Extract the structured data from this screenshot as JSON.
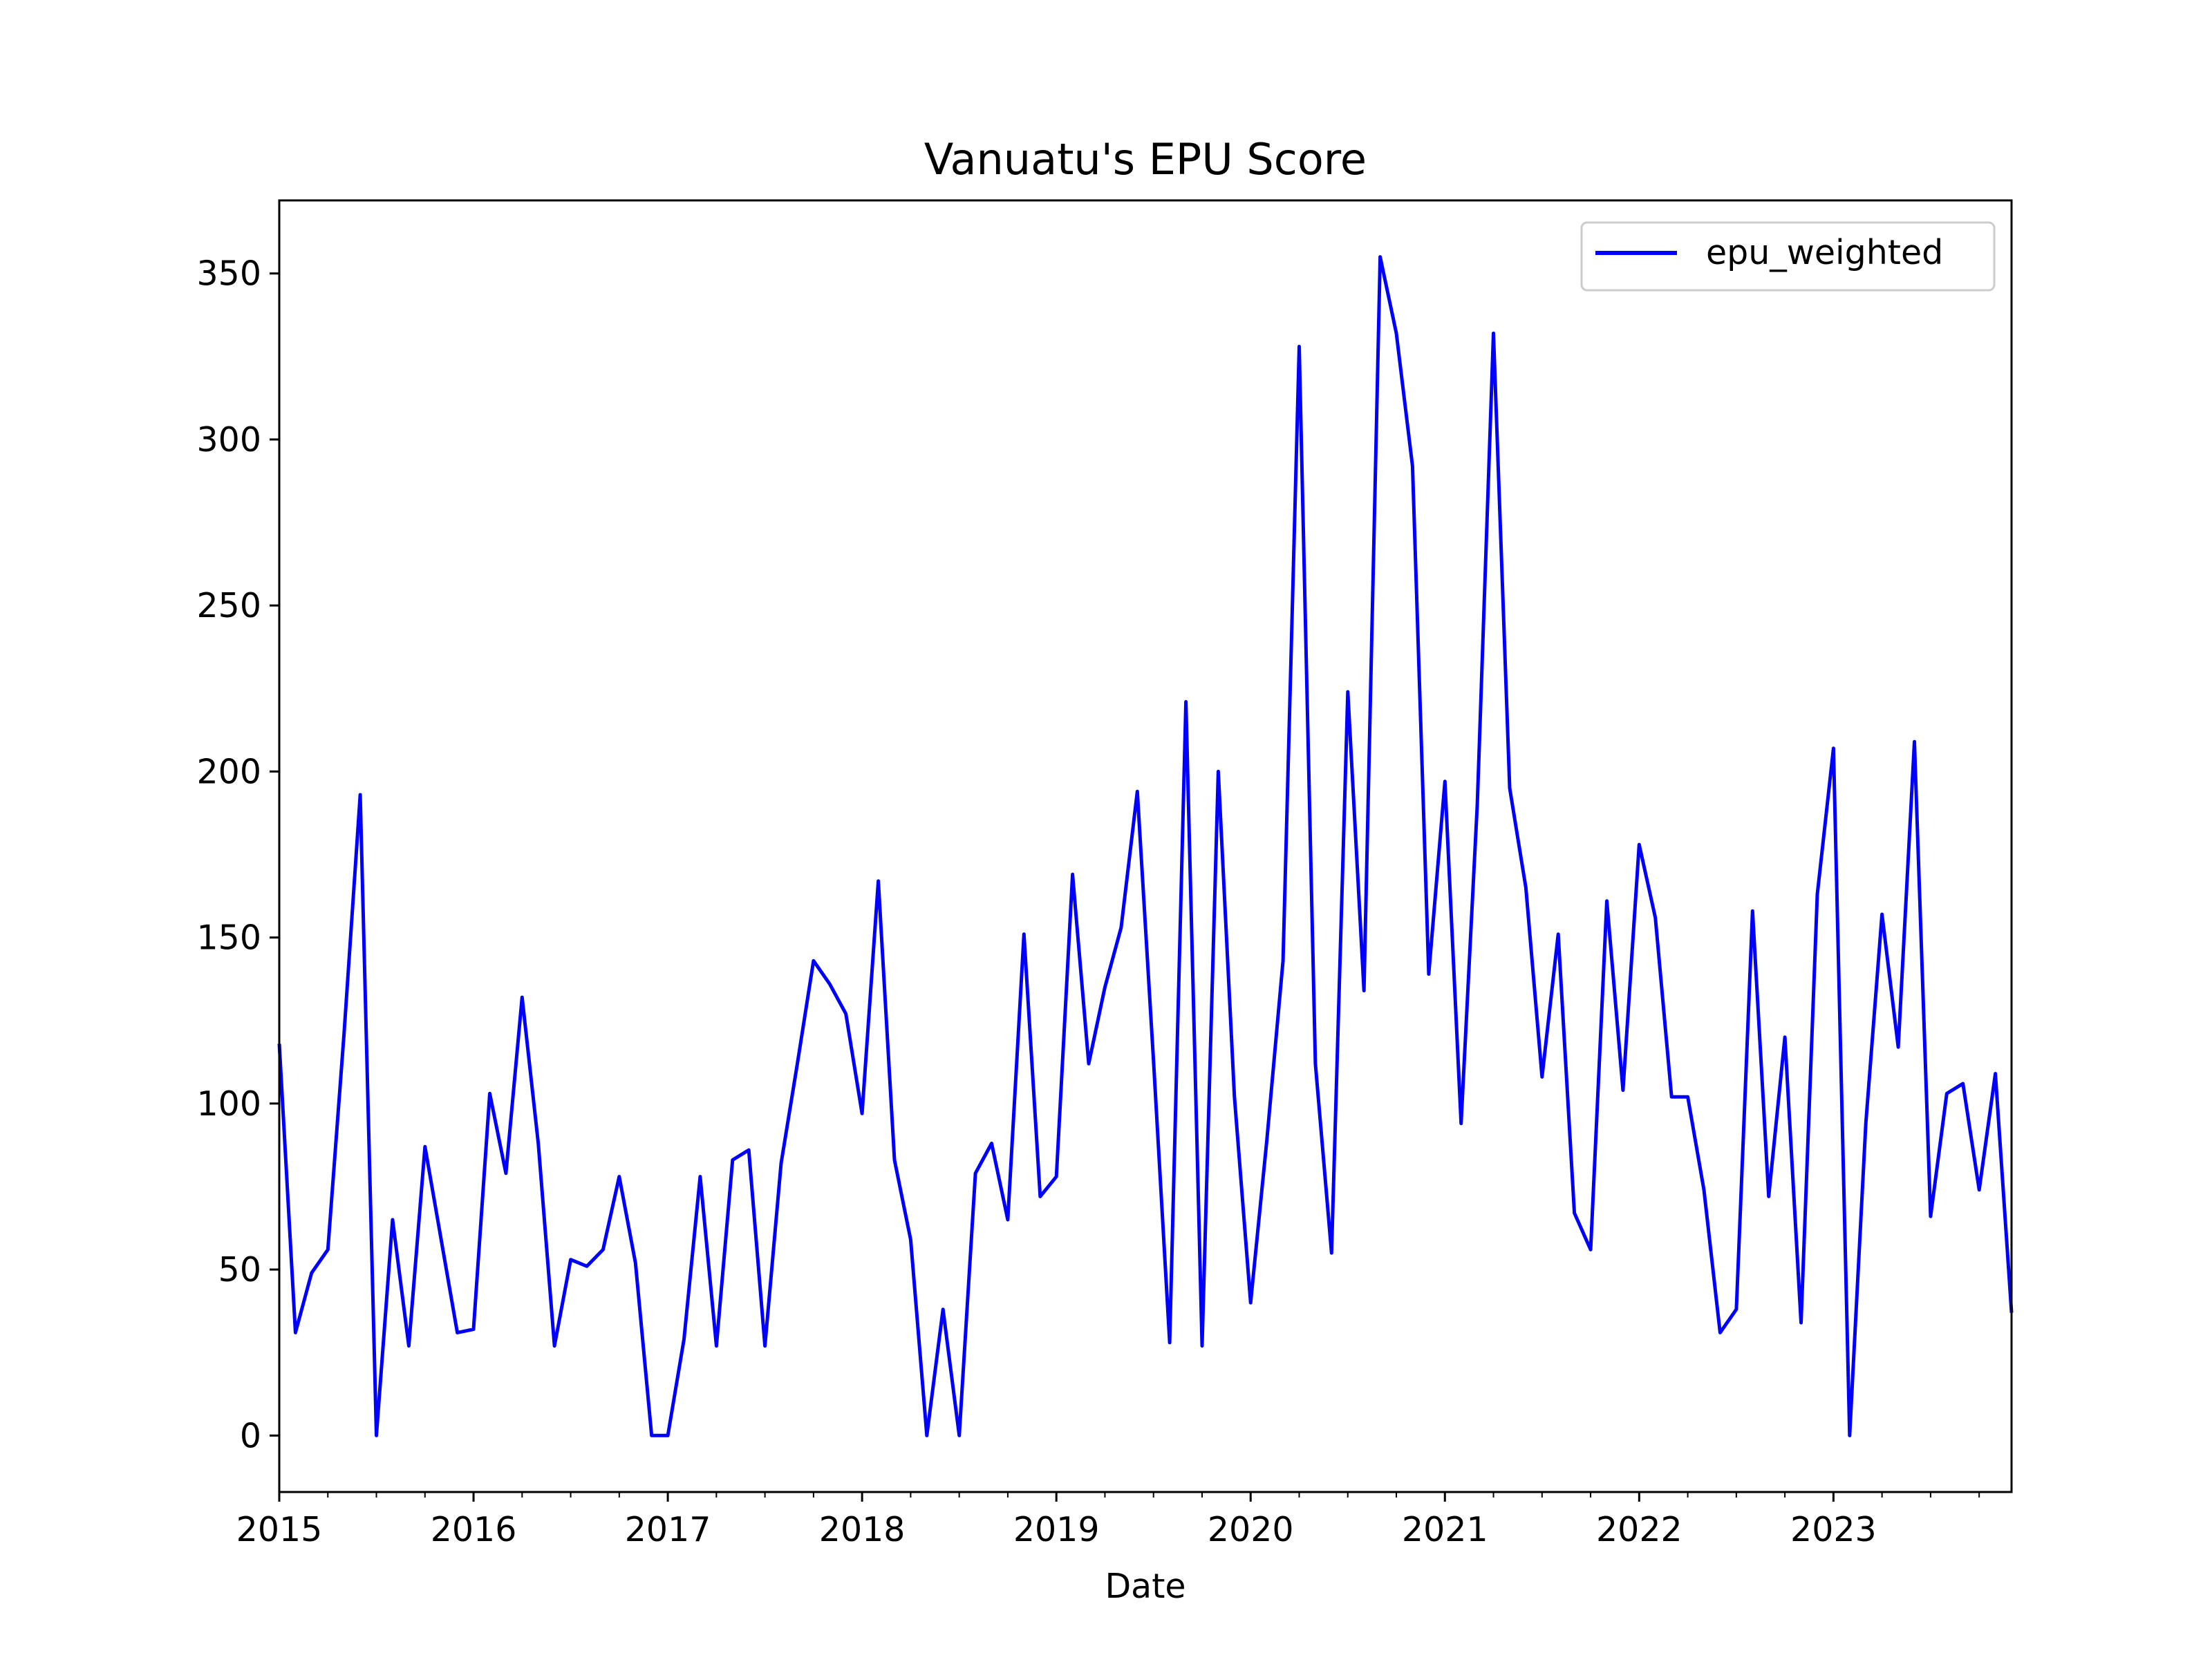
{
  "chart_data": {
    "type": "line",
    "title": "Vanuatu's EPU Score",
    "xlabel": "Date",
    "ylabel": "",
    "x_range": [
      "2015-01",
      "2023-12"
    ],
    "ylim": [
      -17,
      372
    ],
    "y_ticks": [
      0,
      50,
      100,
      150,
      200,
      250,
      300,
      350
    ],
    "x_ticks": [
      "2015",
      "2016",
      "2017",
      "2018",
      "2019",
      "2020",
      "2021",
      "2022",
      "2023"
    ],
    "grid": false,
    "legend_position": "top-right",
    "series": [
      {
        "name": "epu_weighted",
        "color": "#0000ff",
        "points": [
          [
            "2015-01",
            118
          ],
          [
            "2015-02",
            31
          ],
          [
            "2015-03",
            49
          ],
          [
            "2015-04",
            56
          ],
          [
            "2015-05",
            121
          ],
          [
            "2015-06",
            193
          ],
          [
            "2015-07",
            0
          ],
          [
            "2015-08",
            65
          ],
          [
            "2015-09",
            27
          ],
          [
            "2015-10",
            87
          ],
          [
            "2015-11",
            59
          ],
          [
            "2015-12",
            31
          ],
          [
            "2016-01",
            32
          ],
          [
            "2016-02",
            103
          ],
          [
            "2016-03",
            79
          ],
          [
            "2016-04",
            132
          ],
          [
            "2016-05",
            88
          ],
          [
            "2016-06",
            27
          ],
          [
            "2016-07",
            53
          ],
          [
            "2016-08",
            51
          ],
          [
            "2016-09",
            56
          ],
          [
            "2016-10",
            78
          ],
          [
            "2016-11",
            52
          ],
          [
            "2016-12",
            0
          ],
          [
            "2017-01",
            0
          ],
          [
            "2017-02",
            29
          ],
          [
            "2017-03",
            78
          ],
          [
            "2017-04",
            27
          ],
          [
            "2017-05",
            83
          ],
          [
            "2017-06",
            86
          ],
          [
            "2017-07",
            27
          ],
          [
            "2017-08",
            82
          ],
          [
            "2017-09",
            112
          ],
          [
            "2017-10",
            143
          ],
          [
            "2017-11",
            136
          ],
          [
            "2017-12",
            127
          ],
          [
            "2018-01",
            97
          ],
          [
            "2018-02",
            167
          ],
          [
            "2018-03",
            83
          ],
          [
            "2018-04",
            59
          ],
          [
            "2018-05",
            0
          ],
          [
            "2018-06",
            38
          ],
          [
            "2018-07",
            0
          ],
          [
            "2018-08",
            79
          ],
          [
            "2018-09",
            88
          ],
          [
            "2018-10",
            65
          ],
          [
            "2018-11",
            151
          ],
          [
            "2018-12",
            72
          ],
          [
            "2019-01",
            78
          ],
          [
            "2019-02",
            169
          ],
          [
            "2019-03",
            112
          ],
          [
            "2019-04",
            135
          ],
          [
            "2019-05",
            153
          ],
          [
            "2019-06",
            194
          ],
          [
            "2019-07",
            113
          ],
          [
            "2019-08",
            28
          ],
          [
            "2019-09",
            221
          ],
          [
            "2019-10",
            27
          ],
          [
            "2019-11",
            200
          ],
          [
            "2019-12",
            102
          ],
          [
            "2020-01",
            40
          ],
          [
            "2020-02",
            89
          ],
          [
            "2020-03",
            143
          ],
          [
            "2020-04",
            328
          ],
          [
            "2020-05",
            112
          ],
          [
            "2020-06",
            55
          ],
          [
            "2020-07",
            224
          ],
          [
            "2020-08",
            134
          ],
          [
            "2020-09",
            355
          ],
          [
            "2020-10",
            332
          ],
          [
            "2020-11",
            292
          ],
          [
            "2020-12",
            139
          ],
          [
            "2021-01",
            197
          ],
          [
            "2021-02",
            94
          ],
          [
            "2021-03",
            190
          ],
          [
            "2021-04",
            332
          ],
          [
            "2021-05",
            195
          ],
          [
            "2021-06",
            165
          ],
          [
            "2021-07",
            108
          ],
          [
            "2021-08",
            151
          ],
          [
            "2021-09",
            67
          ],
          [
            "2021-10",
            56
          ],
          [
            "2021-11",
            161
          ],
          [
            "2021-12",
            104
          ],
          [
            "2022-01",
            178
          ],
          [
            "2022-02",
            156
          ],
          [
            "2022-03",
            102
          ],
          [
            "2022-04",
            102
          ],
          [
            "2022-05",
            74
          ],
          [
            "2022-06",
            31
          ],
          [
            "2022-07",
            38
          ],
          [
            "2022-08",
            158
          ],
          [
            "2022-09",
            72
          ],
          [
            "2022-10",
            120
          ],
          [
            "2022-11",
            34
          ],
          [
            "2022-12",
            163
          ],
          [
            "2023-01",
            207
          ],
          [
            "2023-02",
            0
          ],
          [
            "2023-03",
            94
          ],
          [
            "2023-04",
            157
          ],
          [
            "2023-05",
            117
          ],
          [
            "2023-06",
            209
          ],
          [
            "2023-07",
            66
          ],
          [
            "2023-08",
            103
          ],
          [
            "2023-09",
            106
          ],
          [
            "2023-10",
            74
          ],
          [
            "2023-11",
            109
          ],
          [
            "2023-12",
            37
          ]
        ]
      }
    ]
  }
}
